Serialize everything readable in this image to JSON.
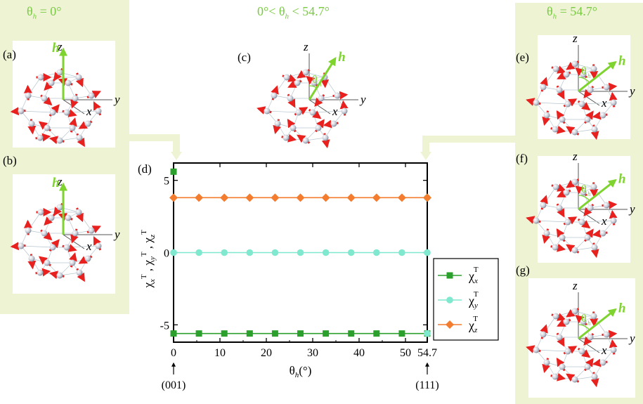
{
  "headings": {
    "left": {
      "sym": "θ",
      "sub": "h",
      "rest": " = 0°"
    },
    "center": {
      "pre": "0°< ",
      "sym": "θ",
      "sub": "h",
      "rest": " < 54.7°"
    },
    "right": {
      "sym": "θ",
      "sub": "h",
      "rest": " = 54.7°"
    }
  },
  "panel_labels": [
    "(a)",
    "(b)",
    "(c)",
    "(d)",
    "(e)",
    "(f)",
    "(g)"
  ],
  "axis_letters": {
    "z": "z",
    "y": "y",
    "x": "x",
    "h": "h",
    "theta": "θ",
    "theta_sub": "h"
  },
  "colors": {
    "green_series": "#2ca02c",
    "cyan_series": "#7fe8cf",
    "orange_series": "#f47c2e",
    "field_arrow": "#7ed32f",
    "spin_arrow": "#e8201e",
    "panel_bg": "#eef3d4"
  },
  "chart_data": {
    "type": "line",
    "panel": "(d)",
    "xlabel": {
      "sym": "θ",
      "sub": "h",
      "rest": "(°)"
    },
    "ylabel": "χxT , χyT , χzT",
    "xlim": [
      0,
      54.7
    ],
    "ylim": [
      -6.2,
      6.2
    ],
    "xticks": [
      0,
      10,
      20,
      30,
      40,
      50,
      54.7
    ],
    "xtick_labels": [
      "0",
      "10",
      "20",
      "30",
      "40",
      "50",
      "54.7"
    ],
    "yticks": [
      -5,
      0,
      5
    ],
    "ytick_labels": [
      "-5",
      "0",
      "5"
    ],
    "x_annotations": [
      {
        "x": 0,
        "label": "(001)"
      },
      {
        "x": 54.7,
        "label": "(111)"
      }
    ],
    "legend_position": "bottom-right",
    "x": [
      0,
      5.47,
      10.94,
      16.41,
      21.88,
      27.35,
      32.82,
      38.29,
      43.76,
      49.23,
      54.7
    ],
    "series": [
      {
        "name": "χxT",
        "legend": {
          "base": "χ",
          "sub": "x",
          "sup": "T"
        },
        "marker": "square",
        "color": "#2ca02c",
        "values": [
          -5.6,
          -5.6,
          -5.6,
          -5.6,
          -5.6,
          -5.6,
          -5.6,
          -5.6,
          -5.6,
          -5.6,
          -5.6
        ],
        "extra_points": [
          {
            "x": 0,
            "y": 5.6
          }
        ]
      },
      {
        "name": "χyT",
        "legend": {
          "base": "χ",
          "sub": "y",
          "sup": "T"
        },
        "marker": "circle",
        "color": "#7fe8cf",
        "values": [
          0,
          0,
          0,
          0,
          0,
          0,
          0,
          0,
          0,
          0,
          0
        ],
        "extra_points": [
          {
            "x": 54.7,
            "y": 3.8
          },
          {
            "x": 54.7,
            "y": -5.6
          }
        ]
      },
      {
        "name": "χzT",
        "legend": {
          "base": "χ",
          "sub": "z",
          "sup": "T"
        },
        "marker": "diamond",
        "color": "#f47c2e",
        "values": [
          3.8,
          3.8,
          3.8,
          3.8,
          3.8,
          3.8,
          3.8,
          3.8,
          3.8,
          3.8,
          3.8
        ],
        "extra_points": []
      }
    ]
  }
}
